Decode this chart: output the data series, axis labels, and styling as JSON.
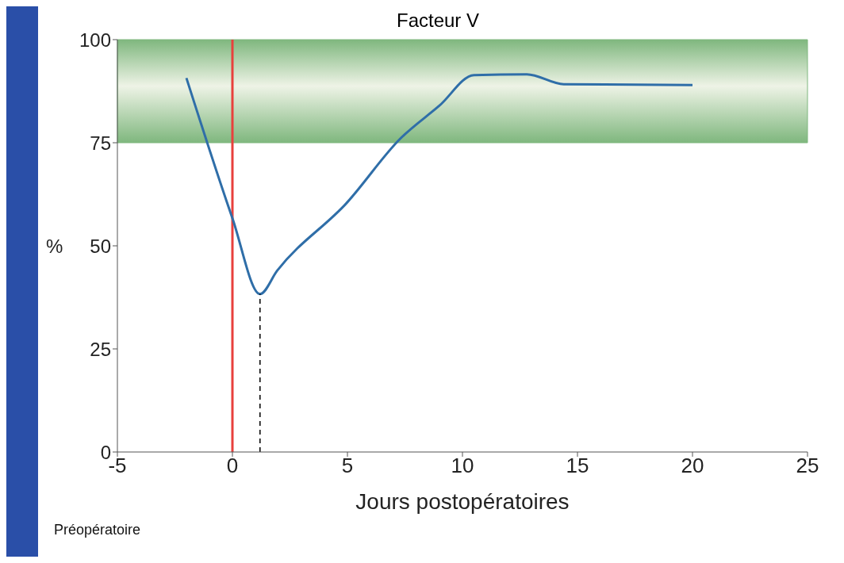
{
  "chart_data": {
    "type": "line",
    "title": "Facteur V",
    "xlabel": "Jours postopératoires",
    "ylabel": "%",
    "annotations": [
      "Préopératoire"
    ],
    "xlim": [
      -5,
      25
    ],
    "xticks": [
      -5,
      0,
      5,
      10,
      15,
      20,
      25
    ],
    "ylim": [
      0,
      100
    ],
    "yticks": [
      0,
      25,
      50,
      75,
      100
    ],
    "series": [
      {
        "color": "#2f6ea8",
        "x": [
          -2,
          0,
          1.2,
          1.95,
          5,
          7.3,
          9,
          10.5,
          12.8,
          14.4,
          20
        ],
        "values": [
          90.7,
          56.7,
          38.3,
          44,
          60.6,
          76,
          84,
          91.4,
          91.6,
          89.2,
          89
        ]
      },
      {
        "color": "#000000",
        "line_style": "dashed",
        "x": [
          1.2,
          1.2
        ],
        "values": [
          0,
          38.3
        ]
      }
    ],
    "ref_lines": [
      {
        "axis": "x",
        "value": 0,
        "color": "#e8403c"
      }
    ],
    "bands": [
      {
        "axis": "y",
        "from": 75,
        "to": 100,
        "color": "#7fb77e"
      }
    ],
    "marker": "none"
  }
}
